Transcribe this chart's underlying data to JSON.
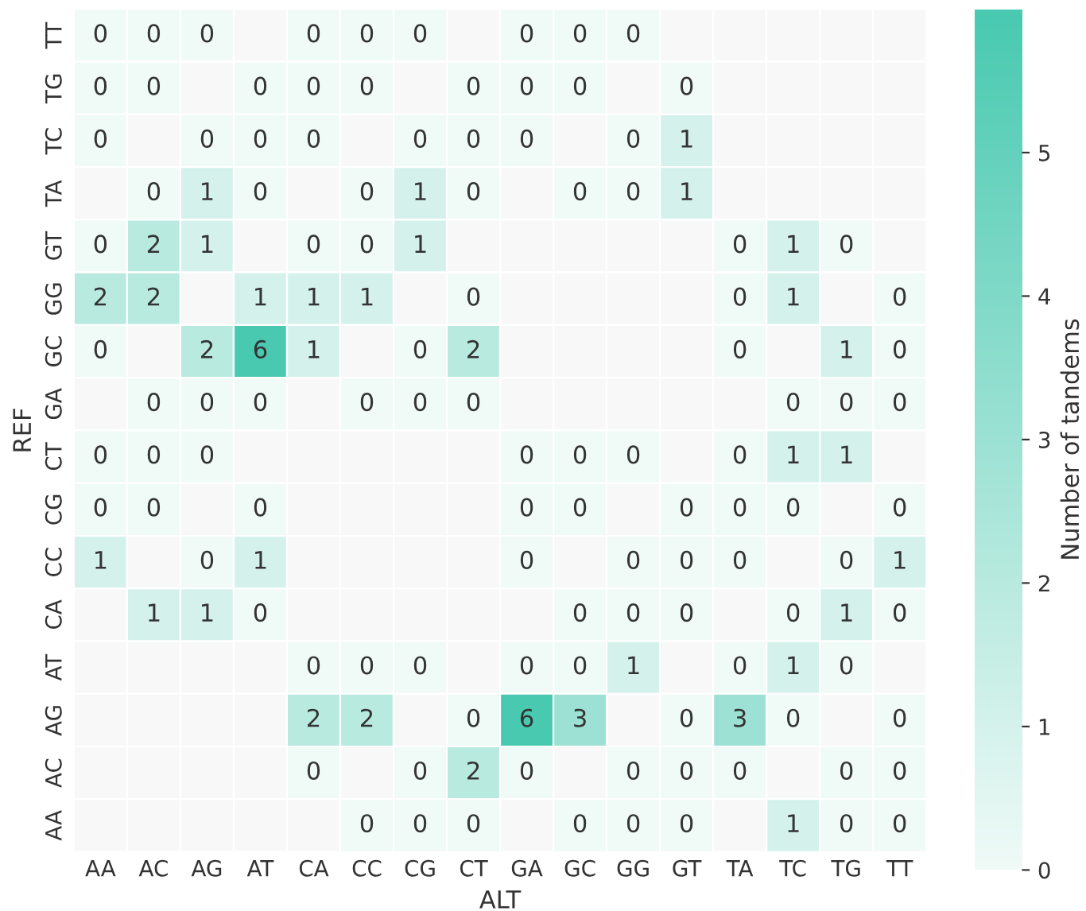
{
  "chart_data": {
    "type": "heatmap",
    "xlabel": "ALT",
    "ylabel": "REF",
    "clabel": "Number of tandems",
    "categories": [
      "AA",
      "AC",
      "AG",
      "AT",
      "CA",
      "CC",
      "CG",
      "CT",
      "GA",
      "GC",
      "GG",
      "GT",
      "TA",
      "TC",
      "TG",
      "TT"
    ],
    "y_categories": [
      "TT",
      "TG",
      "TC",
      "TA",
      "GT",
      "GG",
      "GC",
      "GA",
      "CT",
      "CG",
      "CC",
      "CA",
      "AT",
      "AG",
      "AC",
      "AA"
    ],
    "cells": [
      [
        0,
        0,
        0,
        null,
        0,
        0,
        0,
        null,
        0,
        0,
        0,
        null,
        null,
        null,
        null,
        null
      ],
      [
        0,
        0,
        null,
        0,
        0,
        0,
        null,
        0,
        0,
        0,
        null,
        0,
        null,
        null,
        null,
        null
      ],
      [
        0,
        null,
        0,
        0,
        0,
        null,
        0,
        0,
        0,
        null,
        0,
        1,
        null,
        null,
        null,
        null
      ],
      [
        null,
        0,
        1,
        0,
        null,
        0,
        1,
        0,
        null,
        0,
        0,
        1,
        null,
        null,
        null,
        null
      ],
      [
        0,
        2,
        1,
        null,
        0,
        0,
        1,
        null,
        null,
        null,
        null,
        null,
        0,
        1,
        0,
        null
      ],
      [
        2,
        2,
        null,
        1,
        1,
        1,
        null,
        0,
        null,
        null,
        null,
        null,
        0,
        1,
        null,
        0
      ],
      [
        0,
        null,
        2,
        6,
        1,
        null,
        0,
        2,
        null,
        null,
        null,
        null,
        0,
        null,
        1,
        0
      ],
      [
        null,
        0,
        0,
        0,
        null,
        0,
        0,
        0,
        null,
        null,
        null,
        null,
        null,
        0,
        0,
        0
      ],
      [
        0,
        0,
        0,
        null,
        null,
        null,
        null,
        null,
        0,
        0,
        0,
        null,
        0,
        1,
        1,
        null
      ],
      [
        0,
        0,
        null,
        0,
        null,
        null,
        null,
        null,
        0,
        0,
        null,
        0,
        0,
        0,
        null,
        0
      ],
      [
        1,
        null,
        0,
        1,
        null,
        null,
        null,
        null,
        0,
        null,
        0,
        0,
        0,
        null,
        0,
        1
      ],
      [
        null,
        1,
        1,
        0,
        null,
        null,
        null,
        null,
        null,
        0,
        0,
        0,
        null,
        0,
        1,
        0
      ],
      [
        null,
        null,
        null,
        null,
        0,
        0,
        0,
        null,
        0,
        0,
        1,
        null,
        0,
        1,
        0,
        null
      ],
      [
        null,
        null,
        null,
        null,
        2,
        2,
        null,
        0,
        6,
        3,
        null,
        0,
        3,
        0,
        null,
        0
      ],
      [
        null,
        null,
        null,
        null,
        0,
        null,
        0,
        2,
        0,
        null,
        0,
        0,
        0,
        null,
        0,
        0
      ],
      [
        null,
        null,
        null,
        null,
        null,
        0,
        0,
        0,
        null,
        0,
        0,
        0,
        null,
        1,
        0,
        0
      ]
    ],
    "clim": [
      0,
      6
    ],
    "cticks": [
      0,
      1,
      2,
      3,
      4,
      5
    ],
    "colors": [
      "#f0faf7",
      "#48c9b0"
    ],
    "data_labels": true
  }
}
